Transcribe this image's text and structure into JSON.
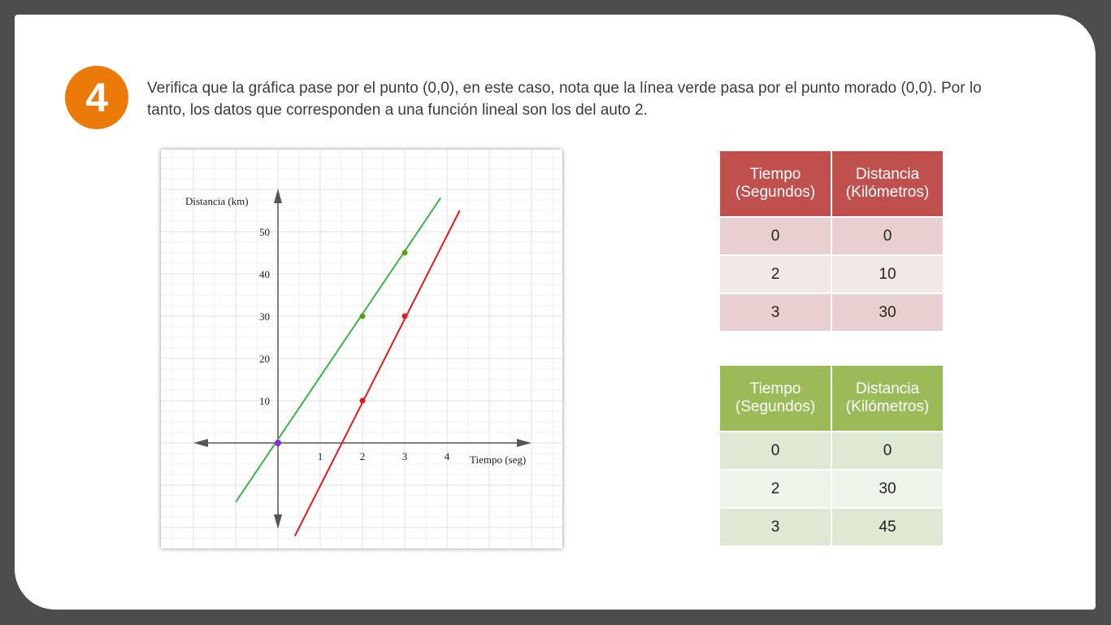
{
  "step": {
    "number": "4"
  },
  "instruction": "Verifica que la gráfica pase por el punto (0,0), en este caso, nota que la línea verde pasa por el punto morado (0,0). Por lo tanto, los datos que corresponden a una función lineal son los del auto 2.",
  "chart_data": {
    "type": "line",
    "xlabel": "Tiempo (seg)",
    "ylabel": "Distancia (km)",
    "xticks": [
      "1",
      "2",
      "3",
      "4"
    ],
    "yticks": [
      "10",
      "20",
      "30",
      "40",
      "50"
    ],
    "xlim": [
      -2,
      6
    ],
    "ylim": [
      -20,
      60
    ],
    "grid": true,
    "series": [
      {
        "color": "#3cb54a",
        "line": [
          [
            -1,
            -14
          ],
          [
            3.85,
            58
          ]
        ],
        "points": [
          [
            2,
            30
          ],
          [
            3,
            45
          ]
        ],
        "point_color": "#5a9e1c"
      },
      {
        "color": "#e31b1b",
        "line": [
          [
            0.4,
            -22
          ],
          [
            4.3,
            55
          ]
        ],
        "points": [
          [
            2,
            10
          ],
          [
            3,
            30
          ]
        ],
        "point_color": "#e31b1b"
      }
    ],
    "origin_point": {
      "x": 0,
      "y": 0,
      "color": "#8a2be2"
    }
  },
  "tables": [
    {
      "header_color": "#c0504d",
      "headers": [
        [
          "Tiempo",
          "(Segundos)"
        ],
        [
          "Distancia",
          "(Kilómetros)"
        ]
      ],
      "rows": [
        [
          "0",
          "0"
        ],
        [
          "2",
          "10"
        ],
        [
          "3",
          "30"
        ]
      ]
    },
    {
      "header_color": "#9bbb59",
      "headers": [
        [
          "Tiempo",
          "(Segundos)"
        ],
        [
          "Distancia",
          "(Kilómetros)"
        ]
      ],
      "rows": [
        [
          "0",
          "0"
        ],
        [
          "2",
          "30"
        ],
        [
          "3",
          "45"
        ]
      ]
    }
  ]
}
